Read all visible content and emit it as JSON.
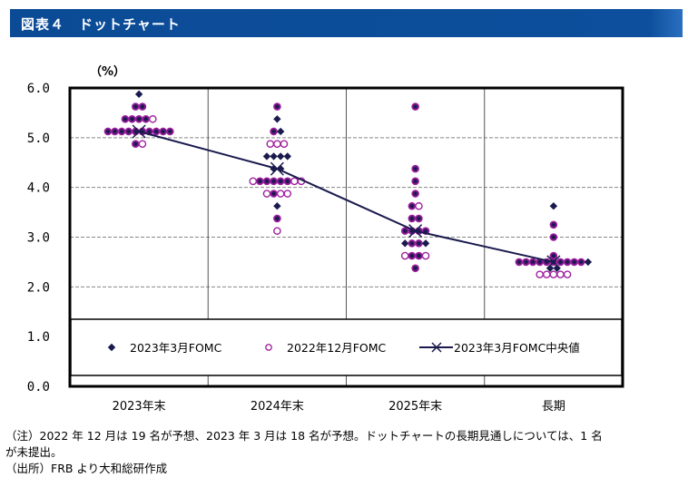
{
  "header": {
    "title": "図表４　ドットチャート"
  },
  "unit_label": "（%）",
  "chart_data": {
    "type": "scatter",
    "title": "ドットチャート",
    "ylabel": "（%）",
    "xlabel": "",
    "ylim": [
      0,
      6
    ],
    "yticks": [
      0,
      1,
      2,
      3,
      4,
      5,
      6
    ],
    "ytick_labels": [
      "0.0",
      "1.0",
      "2.0",
      "3.0",
      "4.0",
      "5.0",
      "6.0"
    ],
    "grid": "horizontal dashed at 2.0–5.0",
    "categories": [
      "2023年末",
      "2024年末",
      "2025年末",
      "長期"
    ],
    "legend_position": "bottom-inside",
    "series": [
      {
        "name": "2023年3月FOMC",
        "marker": "diamond",
        "color": "#1a1a4e",
        "dots": [
          [
            [
              5.875,
              1
            ],
            [
              5.625,
              2
            ],
            [
              5.375,
              4
            ],
            [
              5.125,
              10
            ],
            [
              4.875,
              1
            ]
          ],
          [
            [
              5.625,
              1
            ],
            [
              5.375,
              1
            ],
            [
              5.125,
              2
            ],
            [
              4.625,
              4
            ],
            [
              4.375,
              2
            ],
            [
              4.125,
              5
            ],
            [
              3.875,
              1
            ],
            [
              3.625,
              1
            ],
            [
              3.375,
              1
            ]
          ],
          [
            [
              5.625,
              1
            ],
            [
              4.375,
              1
            ],
            [
              4.125,
              1
            ],
            [
              3.875,
              1
            ],
            [
              3.625,
              1
            ],
            [
              3.375,
              2
            ],
            [
              3.125,
              4
            ],
            [
              2.875,
              4
            ],
            [
              2.625,
              2
            ],
            [
              2.375,
              1
            ]
          ],
          [
            [
              3.625,
              1
            ],
            [
              3.25,
              1
            ],
            [
              3.0,
              1
            ],
            [
              2.625,
              1
            ],
            [
              2.5,
              11
            ],
            [
              2.375,
              2
            ]
          ]
        ]
      },
      {
        "name": "2022年12月FOMC",
        "marker": "open-circle",
        "color": "#a020a0",
        "dots": [
          [
            [
              5.625,
              2
            ],
            [
              5.375,
              5
            ],
            [
              5.125,
              10
            ],
            [
              4.875,
              2
            ]
          ],
          [
            [
              5.625,
              1
            ],
            [
              5.125,
              1
            ],
            [
              4.875,
              3
            ],
            [
              4.125,
              8
            ],
            [
              3.875,
              4
            ],
            [
              3.375,
              1
            ],
            [
              3.125,
              1
            ]
          ],
          [
            [
              5.625,
              1
            ],
            [
              4.375,
              1
            ],
            [
              4.125,
              1
            ],
            [
              3.875,
              1
            ],
            [
              3.625,
              2
            ],
            [
              3.375,
              2
            ],
            [
              3.125,
              4
            ],
            [
              2.875,
              2
            ],
            [
              2.625,
              4
            ],
            [
              2.375,
              1
            ]
          ],
          [
            [
              3.25,
              1
            ],
            [
              3.0,
              1
            ],
            [
              2.625,
              1
            ],
            [
              2.5,
              10
            ],
            [
              2.25,
              5
            ]
          ]
        ]
      },
      {
        "name": "2023年3月FOMC中央値",
        "marker": "x-line",
        "color": "#1a1a4e",
        "values": [
          5.125,
          4.375,
          3.125,
          2.5
        ]
      }
    ]
  },
  "notes": [
    "（注）2022 年 12 月は 19 名が予想、2023 年 3 月は 18 名が予想。ドットチャートの長期見通しについては、1 名",
    "が未提出。",
    "（出所）FRB より大和総研作成"
  ]
}
